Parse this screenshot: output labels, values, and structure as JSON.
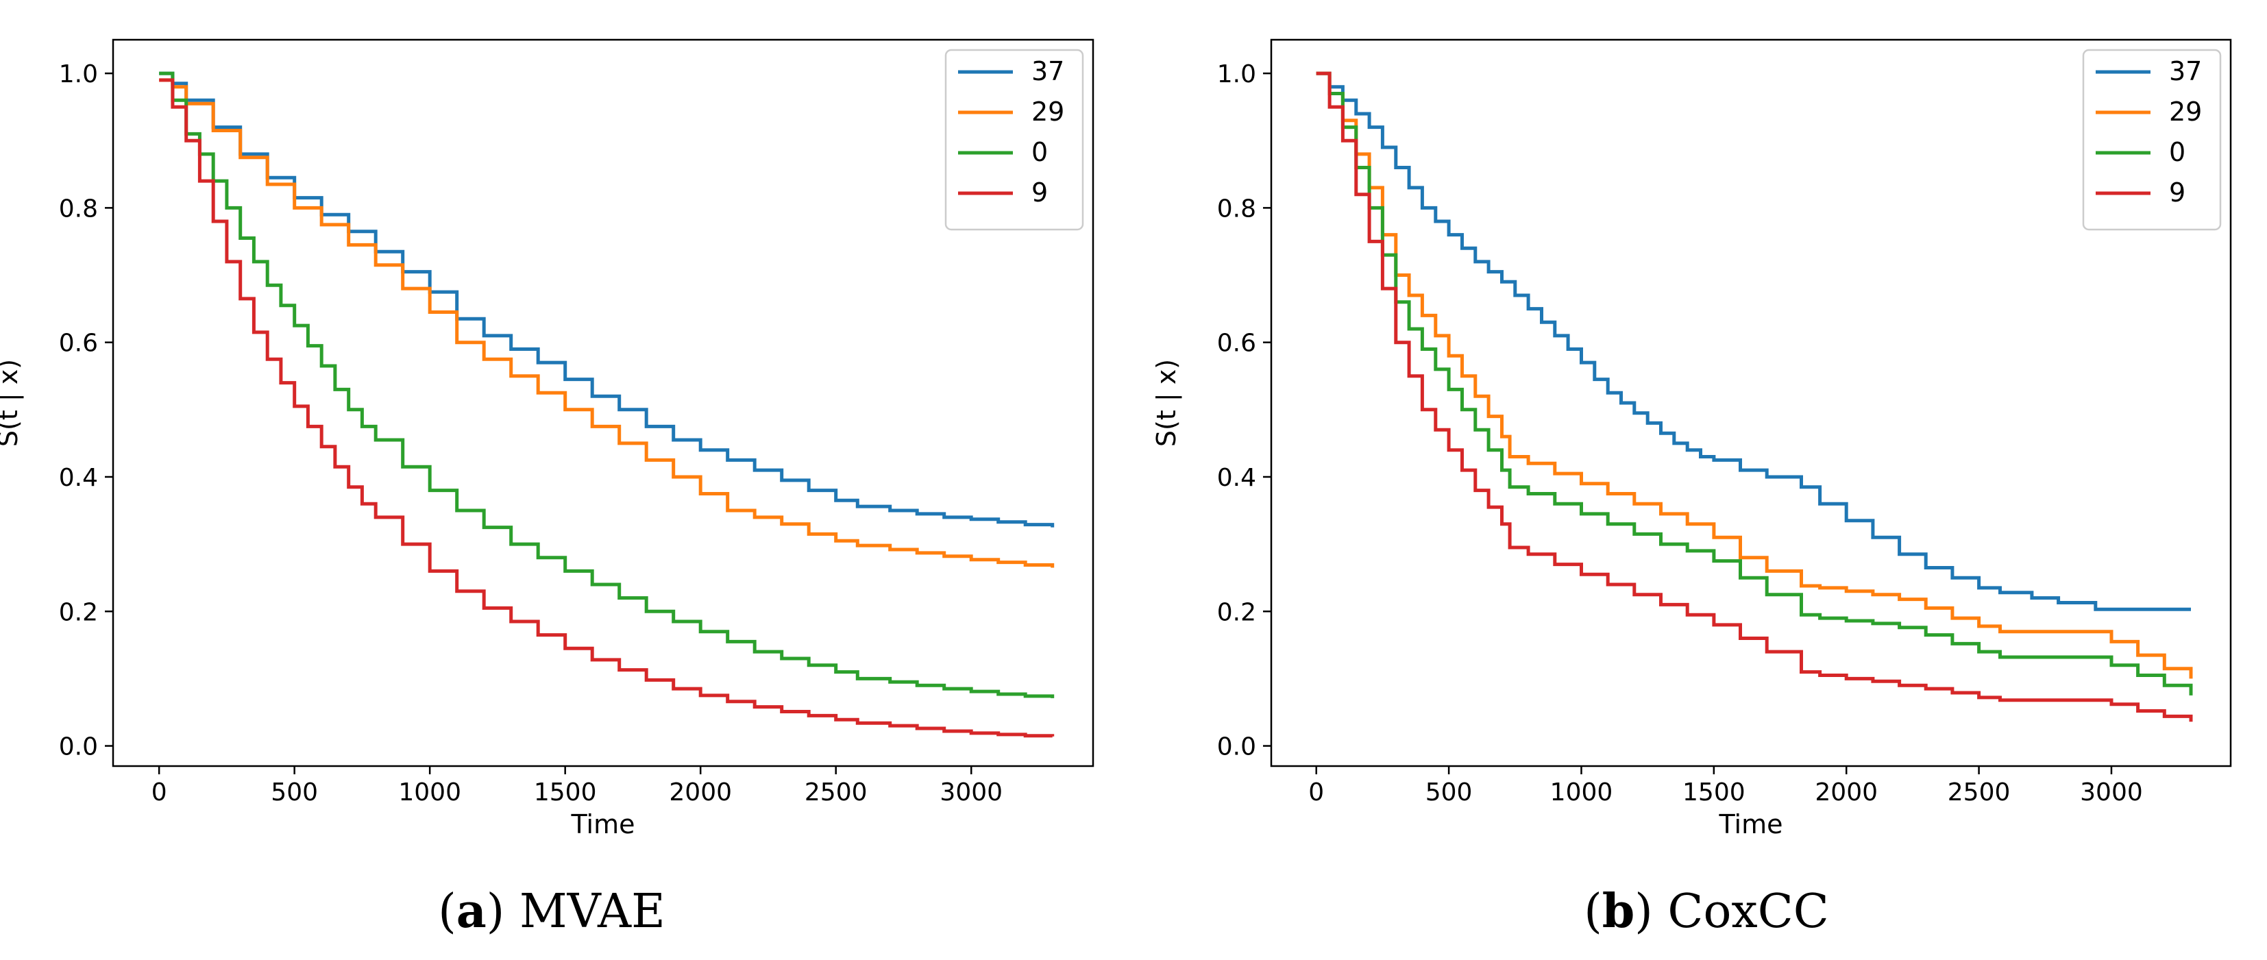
{
  "chart_data": [
    {
      "type": "line",
      "step": true,
      "caption_letter": "a",
      "caption_text": "MVAE",
      "xlabel": "Time",
      "ylabel": "S(t | x)",
      "xlim": [
        -170,
        3450
      ],
      "ylim": [
        -0.03,
        1.05
      ],
      "xticks": [
        0,
        500,
        1000,
        1500,
        2000,
        2500,
        3000
      ],
      "yticks": [
        0.0,
        0.2,
        0.4,
        0.6,
        0.8,
        1.0
      ],
      "ytick_labels": [
        "0.0",
        "0.2",
        "0.4",
        "0.6",
        "0.8",
        "1.0"
      ],
      "legend_position": "top-right",
      "series": [
        {
          "name": "37",
          "color": "#1f77b4",
          "x": [
            0,
            50,
            100,
            200,
            300,
            400,
            500,
            600,
            700,
            800,
            900,
            1000,
            1100,
            1200,
            1300,
            1400,
            1500,
            1600,
            1700,
            1800,
            1900,
            2000,
            2100,
            2200,
            2300,
            2400,
            2500,
            2580,
            2700,
            2800,
            2900,
            3000,
            3100,
            3200,
            3300
          ],
          "y": [
            1.0,
            0.985,
            0.96,
            0.92,
            0.88,
            0.845,
            0.815,
            0.79,
            0.765,
            0.735,
            0.705,
            0.675,
            0.635,
            0.61,
            0.59,
            0.57,
            0.545,
            0.52,
            0.5,
            0.475,
            0.455,
            0.44,
            0.425,
            0.41,
            0.395,
            0.38,
            0.365,
            0.356,
            0.35,
            0.345,
            0.34,
            0.337,
            0.333,
            0.329,
            0.325
          ]
        },
        {
          "name": "29",
          "color": "#ff7f0e",
          "x": [
            0,
            50,
            100,
            200,
            300,
            400,
            500,
            600,
            700,
            800,
            900,
            1000,
            1100,
            1200,
            1300,
            1400,
            1500,
            1600,
            1700,
            1800,
            1900,
            2000,
            2100,
            2200,
            2300,
            2400,
            2500,
            2580,
            2700,
            2800,
            2900,
            3000,
            3100,
            3200,
            3300
          ],
          "y": [
            0.99,
            0.98,
            0.955,
            0.915,
            0.875,
            0.835,
            0.8,
            0.775,
            0.745,
            0.715,
            0.68,
            0.645,
            0.6,
            0.575,
            0.55,
            0.525,
            0.5,
            0.475,
            0.45,
            0.425,
            0.4,
            0.375,
            0.35,
            0.34,
            0.33,
            0.315,
            0.305,
            0.298,
            0.292,
            0.287,
            0.282,
            0.277,
            0.273,
            0.269,
            0.265
          ]
        },
        {
          "name": "0",
          "color": "#2ca02c",
          "x": [
            0,
            50,
            100,
            150,
            200,
            250,
            300,
            350,
            400,
            450,
            500,
            550,
            600,
            650,
            700,
            750,
            800,
            900,
            1000,
            1100,
            1200,
            1300,
            1400,
            1500,
            1600,
            1700,
            1800,
            1900,
            2000,
            2100,
            2200,
            2300,
            2400,
            2500,
            2580,
            2700,
            2800,
            2900,
            3000,
            3100,
            3200,
            3300
          ],
          "y": [
            1.0,
            0.96,
            0.91,
            0.88,
            0.84,
            0.8,
            0.755,
            0.72,
            0.685,
            0.655,
            0.625,
            0.595,
            0.565,
            0.53,
            0.5,
            0.475,
            0.455,
            0.415,
            0.38,
            0.35,
            0.325,
            0.3,
            0.28,
            0.26,
            0.24,
            0.22,
            0.2,
            0.185,
            0.17,
            0.155,
            0.14,
            0.13,
            0.12,
            0.11,
            0.1,
            0.095,
            0.09,
            0.085,
            0.081,
            0.077,
            0.074,
            0.071
          ]
        },
        {
          "name": "9",
          "color": "#d62728",
          "x": [
            0,
            50,
            100,
            150,
            200,
            250,
            300,
            350,
            400,
            450,
            500,
            550,
            600,
            650,
            700,
            750,
            800,
            900,
            1000,
            1100,
            1200,
            1300,
            1400,
            1500,
            1600,
            1700,
            1800,
            1900,
            2000,
            2100,
            2200,
            2300,
            2400,
            2500,
            2580,
            2700,
            2800,
            2900,
            3000,
            3100,
            3200,
            3300
          ],
          "y": [
            0.99,
            0.95,
            0.9,
            0.84,
            0.78,
            0.72,
            0.665,
            0.615,
            0.575,
            0.54,
            0.505,
            0.475,
            0.445,
            0.415,
            0.385,
            0.36,
            0.34,
            0.3,
            0.26,
            0.23,
            0.205,
            0.185,
            0.165,
            0.145,
            0.128,
            0.113,
            0.098,
            0.085,
            0.075,
            0.066,
            0.058,
            0.051,
            0.045,
            0.039,
            0.034,
            0.03,
            0.026,
            0.022,
            0.019,
            0.017,
            0.015,
            0.014
          ]
        }
      ]
    },
    {
      "type": "line",
      "step": true,
      "caption_letter": "b",
      "caption_text": "CoxCC",
      "xlabel": "Time",
      "ylabel": "S(t | x)",
      "xlim": [
        -170,
        3450
      ],
      "ylim": [
        -0.03,
        1.05
      ],
      "xticks": [
        0,
        500,
        1000,
        1500,
        2000,
        2500,
        3000
      ],
      "yticks": [
        0.0,
        0.2,
        0.4,
        0.6,
        0.8,
        1.0
      ],
      "ytick_labels": [
        "0.0",
        "0.2",
        "0.4",
        "0.6",
        "0.8",
        "1.0"
      ],
      "legend_position": "top-right",
      "series": [
        {
          "name": "37",
          "color": "#1f77b4",
          "x": [
            0,
            50,
            100,
            150,
            200,
            250,
            300,
            350,
            400,
            450,
            500,
            550,
            600,
            650,
            700,
            750,
            800,
            850,
            900,
            950,
            1000,
            1050,
            1100,
            1150,
            1200,
            1250,
            1300,
            1350,
            1400,
            1450,
            1500,
            1600,
            1700,
            1830,
            1900,
            2000,
            2100,
            2200,
            2300,
            2400,
            2500,
            2580,
            2700,
            2800,
            2940,
            3100,
            3200,
            3300
          ],
          "y": [
            1.0,
            0.98,
            0.96,
            0.94,
            0.92,
            0.89,
            0.86,
            0.83,
            0.8,
            0.78,
            0.76,
            0.74,
            0.72,
            0.705,
            0.69,
            0.67,
            0.65,
            0.63,
            0.61,
            0.59,
            0.57,
            0.545,
            0.525,
            0.51,
            0.495,
            0.48,
            0.465,
            0.45,
            0.44,
            0.43,
            0.425,
            0.41,
            0.4,
            0.385,
            0.36,
            0.335,
            0.31,
            0.285,
            0.265,
            0.25,
            0.235,
            0.228,
            0.22,
            0.213,
            0.203,
            0.203,
            0.203,
            0.203
          ]
        },
        {
          "name": "29",
          "color": "#ff7f0e",
          "x": [
            0,
            50,
            100,
            150,
            200,
            250,
            300,
            350,
            400,
            450,
            500,
            550,
            600,
            650,
            700,
            730,
            800,
            900,
            1000,
            1100,
            1200,
            1300,
            1400,
            1500,
            1600,
            1700,
            1830,
            1900,
            2000,
            2100,
            2200,
            2300,
            2400,
            2500,
            2580,
            2700,
            2800,
            2940,
            3000,
            3100,
            3200,
            3300
          ],
          "y": [
            1.0,
            0.97,
            0.93,
            0.88,
            0.83,
            0.76,
            0.7,
            0.67,
            0.64,
            0.61,
            0.58,
            0.55,
            0.52,
            0.49,
            0.46,
            0.43,
            0.42,
            0.405,
            0.39,
            0.375,
            0.36,
            0.345,
            0.33,
            0.31,
            0.28,
            0.26,
            0.238,
            0.235,
            0.23,
            0.225,
            0.218,
            0.205,
            0.19,
            0.178,
            0.17,
            0.17,
            0.17,
            0.17,
            0.155,
            0.135,
            0.115,
            0.1
          ]
        },
        {
          "name": "0",
          "color": "#2ca02c",
          "x": [
            0,
            50,
            100,
            150,
            200,
            250,
            300,
            350,
            400,
            450,
            500,
            550,
            600,
            650,
            700,
            730,
            800,
            900,
            1000,
            1100,
            1200,
            1300,
            1400,
            1500,
            1600,
            1700,
            1830,
            1900,
            2000,
            2100,
            2200,
            2300,
            2400,
            2500,
            2580,
            2700,
            2800,
            2940,
            3000,
            3100,
            3200,
            3300
          ],
          "y": [
            1.0,
            0.97,
            0.92,
            0.86,
            0.8,
            0.73,
            0.66,
            0.62,
            0.59,
            0.56,
            0.53,
            0.5,
            0.47,
            0.44,
            0.41,
            0.385,
            0.375,
            0.36,
            0.345,
            0.33,
            0.315,
            0.3,
            0.29,
            0.275,
            0.25,
            0.225,
            0.195,
            0.19,
            0.186,
            0.182,
            0.176,
            0.165,
            0.152,
            0.14,
            0.132,
            0.132,
            0.132,
            0.132,
            0.12,
            0.105,
            0.09,
            0.075
          ]
        },
        {
          "name": "9",
          "color": "#d62728",
          "x": [
            0,
            50,
            100,
            150,
            200,
            250,
            300,
            350,
            400,
            450,
            500,
            550,
            600,
            650,
            700,
            730,
            800,
            900,
            1000,
            1100,
            1200,
            1300,
            1400,
            1500,
            1600,
            1700,
            1830,
            1900,
            2000,
            2100,
            2200,
            2300,
            2400,
            2500,
            2580,
            2700,
            2800,
            2940,
            3000,
            3100,
            3200,
            3300
          ],
          "y": [
            1.0,
            0.95,
            0.9,
            0.82,
            0.75,
            0.68,
            0.6,
            0.55,
            0.5,
            0.47,
            0.44,
            0.41,
            0.38,
            0.355,
            0.33,
            0.295,
            0.285,
            0.27,
            0.255,
            0.24,
            0.225,
            0.21,
            0.195,
            0.18,
            0.16,
            0.14,
            0.11,
            0.105,
            0.1,
            0.096,
            0.09,
            0.085,
            0.079,
            0.072,
            0.068,
            0.068,
            0.068,
            0.068,
            0.062,
            0.052,
            0.044,
            0.036
          ]
        }
      ]
    }
  ]
}
